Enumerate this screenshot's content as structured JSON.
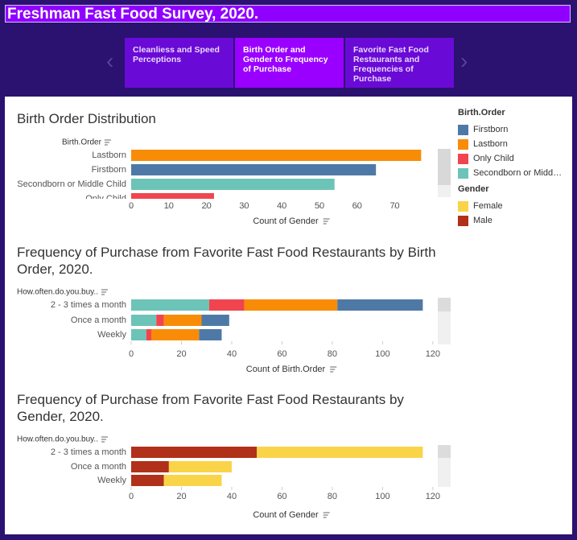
{
  "title": "Freshman Fast Food Survey, 2020.",
  "tabs": [
    "Cleanliess and Speed Perceptions",
    "Birth Order and Gender to Frequency of Purchase",
    "Favorite Fast Food Restaurants and Frequencies of Purchase"
  ],
  "legend_titles": [
    "Birth.Order",
    "Gender"
  ],
  "chart_data": [
    {
      "type": "bar",
      "title": "Birth Order Distribution",
      "row_header": "Birth.Order",
      "x_label": "Count of Gender",
      "categories": [
        "Lastborn",
        "Firstborn",
        "Secondborn or Middle Child",
        "Only Child"
      ],
      "values": [
        77,
        65,
        54,
        22
      ],
      "colors": [
        "#f98c07",
        "#4e79a7",
        "#6cc3b8",
        "#f0454f"
      ],
      "xlim": [
        0,
        78
      ],
      "xticks": [
        0,
        10,
        20,
        30,
        40,
        50,
        60,
        70
      ]
    },
    {
      "type": "stacked_bar",
      "title": "Frequency of Purchase from Favorite Fast Food Restaurants by Birth Order, 2020.",
      "row_header": "How.often.do.you.buy..",
      "x_label": "Count of Birth.Order",
      "categories": [
        "2 - 3 times a month",
        "Once a month",
        "Weekly"
      ],
      "series": [
        {
          "name": "Secondborn or Middle Child",
          "color": "#6cc3b8",
          "values": [
            31,
            10,
            6
          ]
        },
        {
          "name": "Only Child",
          "color": "#f0454f",
          "values": [
            14,
            3,
            2
          ]
        },
        {
          "name": "Lastborn",
          "color": "#f98c07",
          "values": [
            37,
            15,
            19
          ]
        },
        {
          "name": "Firstborn",
          "color": "#4e79a7",
          "values": [
            34,
            11,
            9
          ]
        }
      ],
      "xlim": [
        0,
        121
      ],
      "xticks": [
        0,
        20,
        40,
        60,
        80,
        100,
        120
      ]
    },
    {
      "type": "stacked_bar",
      "title": "Frequency of Purchase from Favorite Fast Food Restaurants by Gender, 2020.",
      "row_header": "How.often.do.you.buy..",
      "x_label": "Count of Gender",
      "categories": [
        "2 - 3 times a month",
        "Once a month",
        "Weekly"
      ],
      "series": [
        {
          "name": "Male",
          "color": "#b0301a",
          "values": [
            50,
            15,
            13
          ]
        },
        {
          "name": "Female",
          "color": "#f9d448",
          "values": [
            66,
            25,
            23
          ]
        }
      ],
      "xlim": [
        0,
        121
      ],
      "xticks": [
        0,
        20,
        40,
        60,
        80,
        100,
        120
      ]
    }
  ]
}
